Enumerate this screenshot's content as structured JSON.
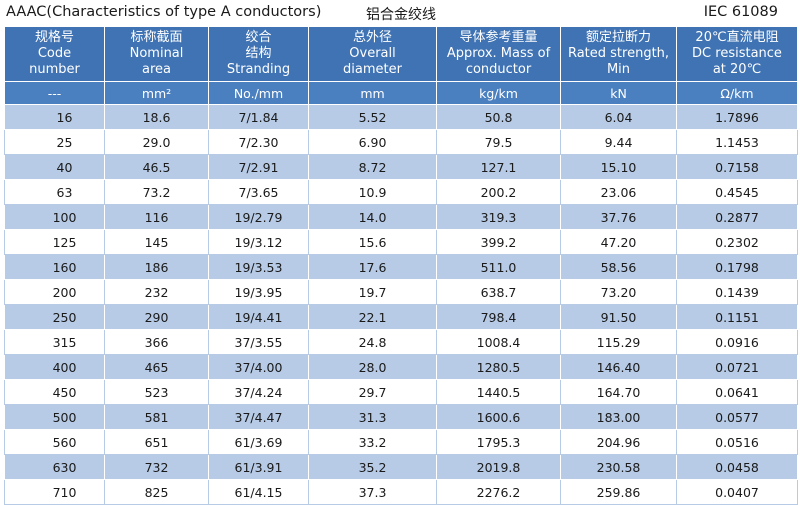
{
  "title": {
    "main": "AAAC(Characteristics of type A conductors)",
    "sub": "铝合金绞线",
    "standard": "IEC 61089"
  },
  "columns": [
    {
      "zh": "规格号",
      "en": [
        "Code",
        "number"
      ],
      "unit": "---"
    },
    {
      "zh": "标称截面",
      "en": [
        "Nominal",
        "area"
      ],
      "unit": "mm²"
    },
    {
      "zh": "绞合",
      "en": [
        "结构",
        "Stranding"
      ],
      "unit": "No./mm"
    },
    {
      "zh": "总外径",
      "en": [
        "Overall",
        "diameter"
      ],
      "unit": "mm"
    },
    {
      "zh": "导体参考重量",
      "en": [
        "Approx. Mass of",
        "conductor"
      ],
      "unit": "kg/km"
    },
    {
      "zh": "额定拉断力",
      "en": [
        "Rated strength,",
        "Min"
      ],
      "unit": "kN"
    },
    {
      "zh": "20℃直流电阻",
      "en": [
        "DC resistance",
        "at 20℃"
      ],
      "unit": "Ω/km"
    }
  ],
  "rows": [
    [
      "16",
      "18.6",
      "7/1.84",
      "5.52",
      "50.8",
      "6.04",
      "1.7896"
    ],
    [
      "25",
      "29.0",
      "7/2.30",
      "6.90",
      "79.5",
      "9.44",
      "1.1453"
    ],
    [
      "40",
      "46.5",
      "7/2.91",
      "8.72",
      "127.1",
      "15.10",
      "0.7158"
    ],
    [
      "63",
      "73.2",
      "7/3.65",
      "10.9",
      "200.2",
      "23.06",
      "0.4545"
    ],
    [
      "100",
      "116",
      "19/2.79",
      "14.0",
      "319.3",
      "37.76",
      "0.2877"
    ],
    [
      "125",
      "145",
      "19/3.12",
      "15.6",
      "399.2",
      "47.20",
      "0.2302"
    ],
    [
      "160",
      "186",
      "19/3.53",
      "17.6",
      "511.0",
      "58.56",
      "0.1798"
    ],
    [
      "200",
      "232",
      "19/3.95",
      "19.7",
      "638.7",
      "73.20",
      "0.1439"
    ],
    [
      "250",
      "290",
      "19/4.41",
      "22.1",
      "798.4",
      "91.50",
      "0.1151"
    ],
    [
      "315",
      "366",
      "37/3.55",
      "24.8",
      "1008.4",
      "115.29",
      "0.0916"
    ],
    [
      "400",
      "465",
      "37/4.00",
      "28.0",
      "1280.5",
      "146.40",
      "0.0721"
    ],
    [
      "450",
      "523",
      "37/4.24",
      "29.7",
      "1440.5",
      "164.70",
      "0.0641"
    ],
    [
      "500",
      "581",
      "37/4.47",
      "31.3",
      "1600.6",
      "183.00",
      "0.0577"
    ],
    [
      "560",
      "651",
      "61/3.69",
      "33.2",
      "1795.3",
      "204.96",
      "0.0516"
    ],
    [
      "630",
      "732",
      "61/3.91",
      "35.2",
      "2019.8",
      "230.58",
      "0.0458"
    ],
    [
      "710",
      "825",
      "61/4.15",
      "37.3",
      "2276.2",
      "259.86",
      "0.0407"
    ]
  ],
  "colors": {
    "header_bg": "#3f73b4",
    "units_bg": "#4a7fc0",
    "stripe_bg": "#b7cbe6",
    "plain_bg": "#ffffff"
  }
}
